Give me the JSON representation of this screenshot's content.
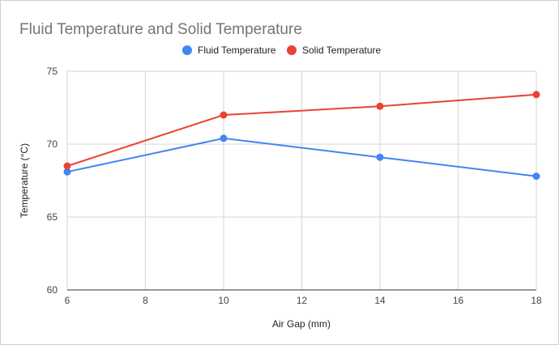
{
  "chart_data": {
    "type": "line",
    "title": "Fluid Temperature and Solid Temperature",
    "xlabel": "Air Gap (mm)",
    "ylabel": "Temperature (°C)",
    "x": [
      6,
      10,
      14,
      18
    ],
    "xlim": [
      6,
      18
    ],
    "ylim": [
      60,
      75
    ],
    "xticks": [
      6,
      8,
      10,
      12,
      14,
      16,
      18
    ],
    "yticks": [
      60,
      65,
      70,
      75
    ],
    "grid": true,
    "legend_position": "top",
    "series": [
      {
        "name": "Fluid Temperature",
        "color": "#4285f4",
        "values": [
          68.1,
          70.4,
          69.1,
          67.8
        ]
      },
      {
        "name": "Solid Temperature",
        "color": "#ea4335",
        "values": [
          68.5,
          72.0,
          72.6,
          73.4
        ]
      }
    ]
  }
}
